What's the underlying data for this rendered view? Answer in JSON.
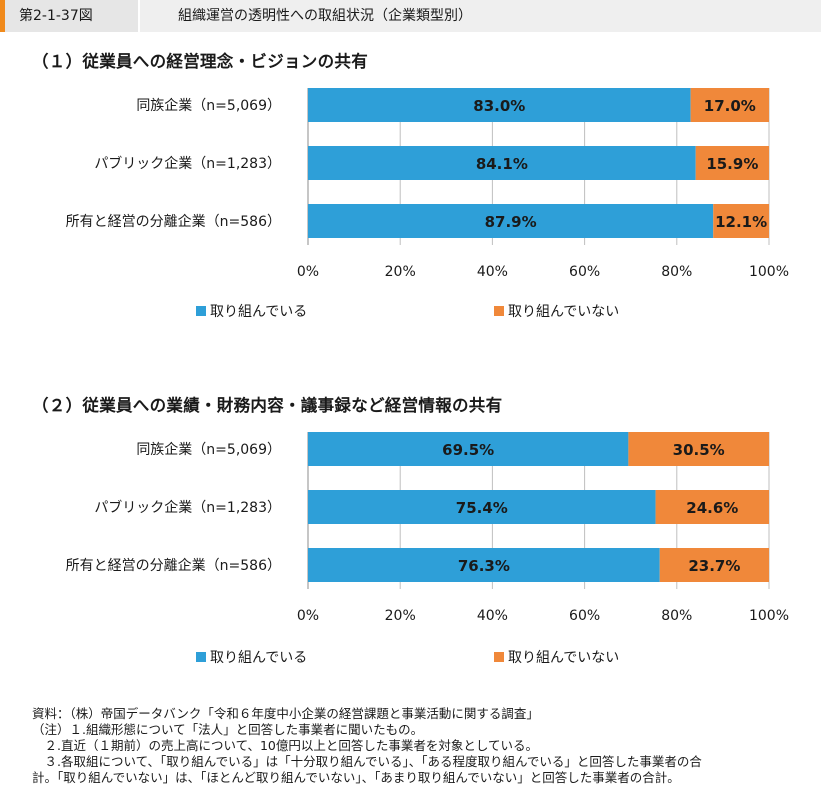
{
  "header": {
    "figure_number": "第2-1-37図",
    "title": "組織運営の透明性への取組状況（企業類型別）"
  },
  "colors": {
    "series1": "#2e9fd8",
    "series2": "#f0883a",
    "grid": "#bfbfbf",
    "axis": "#8c8c8c"
  },
  "chart_data": [
    {
      "type": "bar",
      "orientation": "horizontal",
      "stacked": true,
      "title": "（１）従業員への経営理念・ビジョンの共有",
      "categories": [
        "同族企業（n=5,069）",
        "パブリック企業（n=1,283）",
        "所有と経営の分離企業（n=586）"
      ],
      "series": [
        {
          "name": "取り組んでいる",
          "values": [
            83.0,
            84.1,
            87.9
          ],
          "labels": [
            "83.0%",
            "84.1%",
            "87.9%"
          ]
        },
        {
          "name": "取り組んでいない",
          "values": [
            17.0,
            15.9,
            12.1
          ],
          "labels": [
            "17.0%",
            "15.9%",
            "12.1%"
          ]
        }
      ],
      "xlim": [
        0,
        100
      ],
      "xticks": [
        "0%",
        "20%",
        "40%",
        "60%",
        "80%",
        "100%"
      ],
      "grid": true,
      "legend": "bottom"
    },
    {
      "type": "bar",
      "orientation": "horizontal",
      "stacked": true,
      "title": "（２）従業員への業績・財務内容・議事録など経営情報の共有",
      "categories": [
        "同族企業（n=5,069）",
        "パブリック企業（n=1,283）",
        "所有と経営の分離企業（n=586）"
      ],
      "series": [
        {
          "name": "取り組んでいる",
          "values": [
            69.5,
            75.4,
            76.3
          ],
          "labels": [
            "69.5%",
            "75.4%",
            "76.3%"
          ]
        },
        {
          "name": "取り組んでいない",
          "values": [
            30.5,
            24.6,
            23.7
          ],
          "labels": [
            "30.5%",
            "24.6%",
            "23.7%"
          ]
        }
      ],
      "xlim": [
        0,
        100
      ],
      "xticks": [
        "0%",
        "20%",
        "40%",
        "60%",
        "80%",
        "100%"
      ],
      "grid": true,
      "legend": "bottom"
    }
  ],
  "source": {
    "lines": [
      "資料：（株）帝国データバンク「令和６年度中小企業の経営課題と事業活動に関する調査」",
      "（注）１.組織形態について「法人」と回答した事業者に聞いたもの。",
      "　２.直近（１期前）の売上高について、10億円以上と回答した事業者を対象としている。",
      "　３.各取組について、「取り組んでいる」は「十分取り組んでいる」、「ある程度取り組んでいる」と回答した事業者の合",
      "計。「取り組んでいない」は、「ほとんど取り組んでいない」、「あまり取り組んでいない」と回答した事業者の合計。"
    ]
  }
}
